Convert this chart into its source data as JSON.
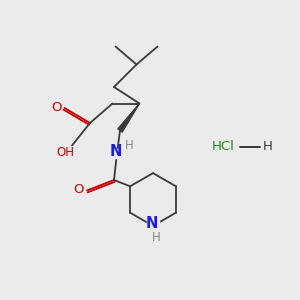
{
  "bg": "#ebebeb",
  "bc": "#3a3a3a",
  "oc": "#cc0000",
  "nc": "#1a1aee",
  "hc": "#228b22",
  "nh_color": "#888888",
  "fs": 8,
  "lw": 1.3,
  "xlim": [
    0,
    10
  ],
  "ylim": [
    0,
    10
  ]
}
